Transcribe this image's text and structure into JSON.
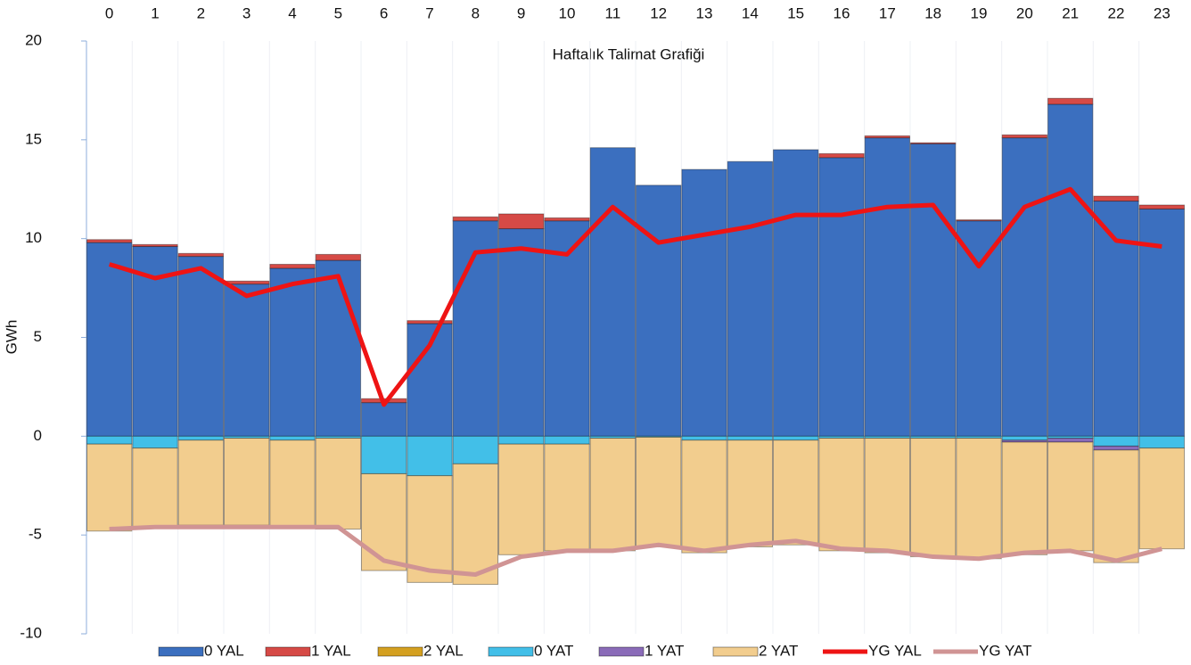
{
  "chart_data": {
    "type": "bar",
    "stacked": true,
    "title": "Haftalık Talimat Grafiği",
    "y_label": "GWh",
    "categories": [
      "0",
      "1",
      "2",
      "3",
      "4",
      "5",
      "6",
      "7",
      "8",
      "9",
      "10",
      "11",
      "12",
      "13",
      "14",
      "15",
      "16",
      "17",
      "18",
      "19",
      "20",
      "21",
      "22",
      "23"
    ],
    "ylim": [
      -10,
      20
    ],
    "yticks": [
      -10,
      -5,
      0,
      5,
      10,
      15,
      20
    ],
    "legend": "bottom",
    "series": [
      {
        "name": "0 YAL",
        "type": "bar",
        "color": "#3b6fbf",
        "values": [
          9.8,
          9.6,
          9.1,
          7.7,
          8.5,
          8.9,
          1.7,
          5.7,
          10.9,
          10.5,
          10.9,
          14.6,
          12.7,
          13.5,
          13.9,
          14.5,
          14.1,
          15.1,
          14.8,
          10.9,
          15.1,
          16.8,
          11.9,
          11.5
        ]
      },
      {
        "name": "1 YAL",
        "type": "bar",
        "color": "#d64a46",
        "values": [
          0.15,
          0.1,
          0.15,
          0.15,
          0.2,
          0.3,
          0.2,
          0.15,
          0.2,
          0.75,
          0.15,
          0,
          0,
          0,
          0,
          0,
          0.2,
          0.1,
          0.05,
          0.05,
          0.15,
          0.3,
          0.25,
          0.2
        ]
      },
      {
        "name": "2 YAL",
        "type": "bar",
        "color": "#d4a020",
        "values": [
          0,
          0,
          0,
          0,
          0,
          0,
          0,
          0,
          0,
          0,
          0,
          0,
          0,
          0,
          0,
          0,
          0,
          0,
          0,
          0,
          0,
          0,
          0,
          0
        ]
      },
      {
        "name": "0 YAT",
        "type": "bar",
        "color": "#42bfe8",
        "values": [
          -0.4,
          -0.6,
          -0.2,
          -0.1,
          -0.2,
          -0.1,
          -1.9,
          -2.0,
          -1.4,
          -0.4,
          -0.4,
          -0.1,
          -0.05,
          -0.2,
          -0.2,
          -0.2,
          -0.1,
          -0.1,
          -0.1,
          -0.1,
          -0.2,
          -0.1,
          -0.5,
          -0.6
        ]
      },
      {
        "name": "1 YAT",
        "type": "bar",
        "color": "#8a6bb8",
        "values": [
          0,
          0,
          0,
          0,
          0,
          0,
          0,
          0,
          0,
          0,
          0,
          0,
          0,
          0,
          0,
          0,
          0,
          0,
          0,
          0,
          -0.1,
          -0.2,
          -0.2,
          0
        ]
      },
      {
        "name": "2 YAT",
        "type": "bar",
        "color": "#f2cd8e",
        "values": [
          -4.4,
          -4.0,
          -4.3,
          -4.4,
          -4.4,
          -4.6,
          -4.9,
          -5.4,
          -6.1,
          -5.6,
          -5.4,
          -5.7,
          -5.55,
          -5.7,
          -5.4,
          -5.3,
          -5.7,
          -5.8,
          -6.0,
          -6.1,
          -5.7,
          -5.5,
          -5.7,
          -5.1
        ]
      },
      {
        "name": "YG YAL",
        "type": "line",
        "color": "#ee1414",
        "values": [
          8.7,
          8.0,
          8.5,
          7.1,
          7.7,
          8.1,
          1.6,
          4.6,
          9.3,
          9.5,
          9.2,
          11.6,
          9.8,
          10.2,
          10.6,
          11.2,
          11.2,
          11.6,
          11.7,
          8.6,
          11.6,
          12.5,
          9.9,
          9.6
        ]
      },
      {
        "name": "YG YAT",
        "type": "line",
        "color": "#d09494",
        "values": [
          -4.7,
          -4.6,
          -4.6,
          -4.6,
          -4.6,
          -4.6,
          -6.3,
          -6.8,
          -7.0,
          -6.1,
          -5.8,
          -5.8,
          -5.5,
          -5.8,
          -5.5,
          -5.3,
          -5.7,
          -5.8,
          -6.1,
          -6.2,
          -5.9,
          -5.8,
          -6.3,
          -5.7
        ]
      }
    ]
  }
}
